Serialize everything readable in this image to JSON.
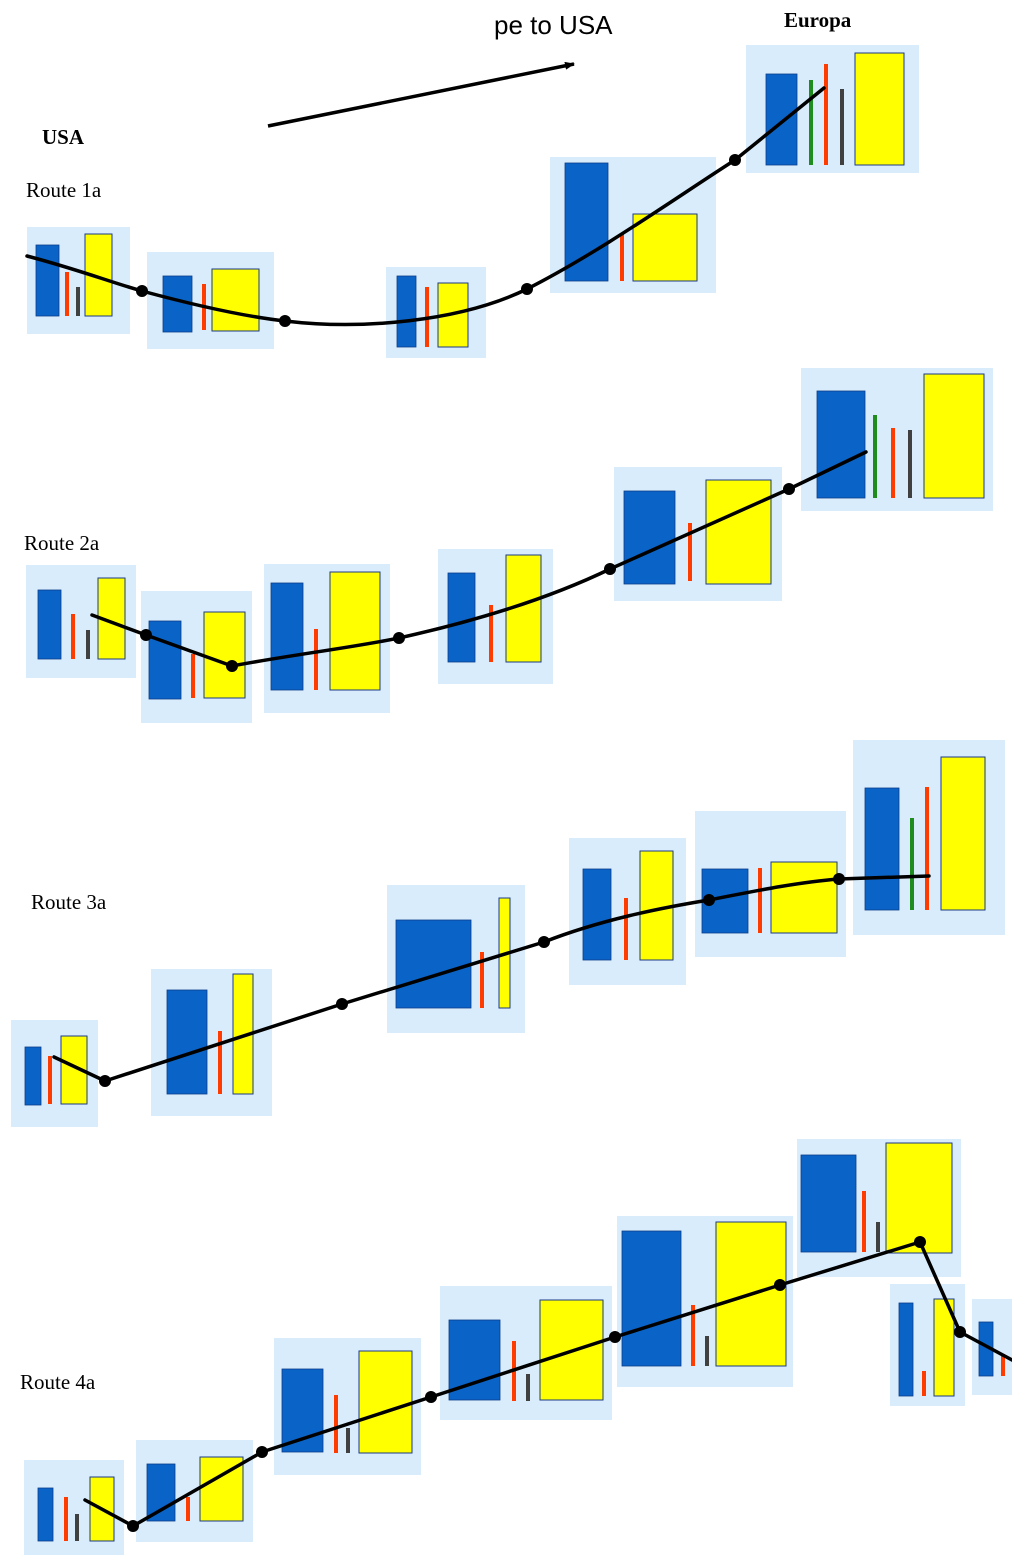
{
  "header": {
    "arrow_label": "pe to USA",
    "left_label": "USA",
    "right_label": "Europa"
  },
  "colors": {
    "panel": "#d9ecfb",
    "blue": "#0a64c8",
    "yellow": "#ffff00",
    "red": "#ff3c00",
    "green": "#1e8c1e",
    "gray": "#404040",
    "line": "#000000"
  },
  "routes": [
    {
      "label": "Route 1a"
    },
    {
      "label": "Route 2a"
    },
    {
      "label": "Route 3a"
    },
    {
      "label": "Route 4a"
    }
  ]
}
